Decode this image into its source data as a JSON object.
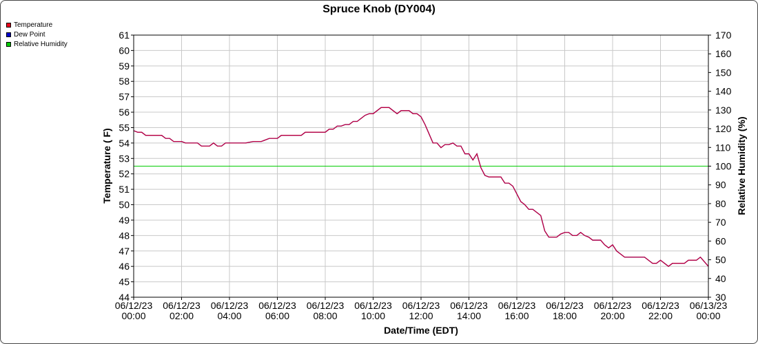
{
  "chart_data": {
    "type": "line",
    "title": "Spruce Knob (DY004)",
    "xlabel": "Date/Time (EDT)",
    "ylabel": "Temperature ( F)",
    "y2label": "Relative Humidity (%)",
    "ylim": [
      44,
      61
    ],
    "y2lim": [
      30,
      170
    ],
    "xlim": [
      0,
      24
    ],
    "x_ticks": [
      {
        "date": "06/12/23",
        "time": "00:00"
      },
      {
        "date": "06/12/23",
        "time": "02:00"
      },
      {
        "date": "06/12/23",
        "time": "04:00"
      },
      {
        "date": "06/12/23",
        "time": "06:00"
      },
      {
        "date": "06/12/23",
        "time": "08:00"
      },
      {
        "date": "06/12/23",
        "time": "10:00"
      },
      {
        "date": "06/12/23",
        "time": "12:00"
      },
      {
        "date": "06/12/23",
        "time": "14:00"
      },
      {
        "date": "06/12/23",
        "time": "16:00"
      },
      {
        "date": "06/12/23",
        "time": "18:00"
      },
      {
        "date": "06/12/23",
        "time": "20:00"
      },
      {
        "date": "06/12/23",
        "time": "22:00"
      },
      {
        "date": "06/13/23",
        "time": "00:00"
      }
    ],
    "y_ticks": [
      44,
      45,
      46,
      47,
      48,
      49,
      50,
      51,
      52,
      53,
      54,
      55,
      56,
      57,
      58,
      59,
      60,
      61
    ],
    "y2_ticks": [
      30,
      40,
      50,
      60,
      70,
      80,
      90,
      100,
      110,
      120,
      130,
      140,
      150,
      160,
      170
    ],
    "legend": [
      "Temperature",
      "Dew Point",
      "Relative Humidity"
    ],
    "legend_position": "top-left",
    "grid": true,
    "series": [
      {
        "name": "Temperature",
        "color": "#e8001c",
        "axis": "left",
        "points": [
          [
            "06/12/23 00:00",
            54.8
          ],
          [
            "06/12/23 00:10",
            54.7
          ],
          [
            "06/12/23 00:20",
            54.7
          ],
          [
            "06/12/23 00:30",
            54.5
          ],
          [
            "06/12/23 00:40",
            54.5
          ],
          [
            "06/12/23 00:50",
            54.5
          ],
          [
            "06/12/23 01:00",
            54.5
          ],
          [
            "06/12/23 01:10",
            54.5
          ],
          [
            "06/12/23 01:20",
            54.3
          ],
          [
            "06/12/23 01:30",
            54.3
          ],
          [
            "06/12/23 01:40",
            54.1
          ],
          [
            "06/12/23 01:50",
            54.1
          ],
          [
            "06/12/23 02:00",
            54.1
          ],
          [
            "06/12/23 02:10",
            54.0
          ],
          [
            "06/12/23 02:20",
            54.0
          ],
          [
            "06/12/23 02:30",
            54.0
          ],
          [
            "06/12/23 02:40",
            54.0
          ],
          [
            "06/12/23 02:50",
            53.8
          ],
          [
            "06/12/23 03:00",
            53.8
          ],
          [
            "06/12/23 03:10",
            53.8
          ],
          [
            "06/12/23 03:20",
            54.0
          ],
          [
            "06/12/23 03:30",
            53.8
          ],
          [
            "06/12/23 03:40",
            53.8
          ],
          [
            "06/12/23 03:50",
            54.0
          ],
          [
            "06/12/23 04:00",
            54.0
          ],
          [
            "06/12/23 04:20",
            54.0
          ],
          [
            "06/12/23 04:40",
            54.0
          ],
          [
            "06/12/23 05:00",
            54.1
          ],
          [
            "06/12/23 05:20",
            54.1
          ],
          [
            "06/12/23 05:40",
            54.3
          ],
          [
            "06/12/23 06:00",
            54.3
          ],
          [
            "06/12/23 06:10",
            54.5
          ],
          [
            "06/12/23 06:40",
            54.5
          ],
          [
            "06/12/23 07:00",
            54.5
          ],
          [
            "06/12/23 07:10",
            54.7
          ],
          [
            "06/12/23 07:40",
            54.7
          ],
          [
            "06/12/23 08:00",
            54.7
          ],
          [
            "06/12/23 08:10",
            54.9
          ],
          [
            "06/12/23 08:20",
            54.9
          ],
          [
            "06/12/23 08:30",
            55.1
          ],
          [
            "06/12/23 08:40",
            55.1
          ],
          [
            "06/12/23 08:50",
            55.2
          ],
          [
            "06/12/23 09:00",
            55.2
          ],
          [
            "06/12/23 09:10",
            55.4
          ],
          [
            "06/12/23 09:20",
            55.4
          ],
          [
            "06/12/23 09:30",
            55.6
          ],
          [
            "06/12/23 09:40",
            55.8
          ],
          [
            "06/12/23 09:50",
            55.9
          ],
          [
            "06/12/23 10:00",
            55.9
          ],
          [
            "06/12/23 10:10",
            56.1
          ],
          [
            "06/12/23 10:20",
            56.3
          ],
          [
            "06/12/23 10:30",
            56.3
          ],
          [
            "06/12/23 10:40",
            56.3
          ],
          [
            "06/12/23 10:50",
            56.1
          ],
          [
            "06/12/23 11:00",
            55.9
          ],
          [
            "06/12/23 11:10",
            56.1
          ],
          [
            "06/12/23 11:20",
            56.1
          ],
          [
            "06/12/23 11:30",
            56.1
          ],
          [
            "06/12/23 11:40",
            55.9
          ],
          [
            "06/12/23 11:50",
            55.9
          ],
          [
            "06/12/23 12:00",
            55.7
          ],
          [
            "06/12/23 12:10",
            55.2
          ],
          [
            "06/12/23 12:20",
            54.6
          ],
          [
            "06/12/23 12:30",
            54.0
          ],
          [
            "06/12/23 12:40",
            54.0
          ],
          [
            "06/12/23 12:50",
            53.7
          ],
          [
            "06/12/23 13:00",
            53.9
          ],
          [
            "06/12/23 13:10",
            53.9
          ],
          [
            "06/12/23 13:20",
            54.0
          ],
          [
            "06/12/23 13:30",
            53.8
          ],
          [
            "06/12/23 13:40",
            53.8
          ],
          [
            "06/12/23 13:50",
            53.3
          ],
          [
            "06/12/23 14:00",
            53.3
          ],
          [
            "06/12/23 14:10",
            52.9
          ],
          [
            "06/12/23 14:20",
            53.3
          ],
          [
            "06/12/23 14:30",
            52.4
          ],
          [
            "06/12/23 14:40",
            51.9
          ],
          [
            "06/12/23 14:50",
            51.8
          ],
          [
            "06/12/23 15:00",
            51.8
          ],
          [
            "06/12/23 15:10",
            51.8
          ],
          [
            "06/12/23 15:20",
            51.8
          ],
          [
            "06/12/23 15:30",
            51.4
          ],
          [
            "06/12/23 15:40",
            51.4
          ],
          [
            "06/12/23 15:50",
            51.2
          ],
          [
            "06/12/23 16:00",
            50.7
          ],
          [
            "06/12/23 16:10",
            50.2
          ],
          [
            "06/12/23 16:20",
            50.0
          ],
          [
            "06/12/23 16:30",
            49.7
          ],
          [
            "06/12/23 16:40",
            49.7
          ],
          [
            "06/12/23 16:50",
            49.5
          ],
          [
            "06/12/23 17:00",
            49.3
          ],
          [
            "06/12/23 17:10",
            48.3
          ],
          [
            "06/12/23 17:20",
            47.9
          ],
          [
            "06/12/23 17:30",
            47.9
          ],
          [
            "06/12/23 17:40",
            47.9
          ],
          [
            "06/12/23 17:50",
            48.1
          ],
          [
            "06/12/23 18:00",
            48.2
          ],
          [
            "06/12/23 18:10",
            48.2
          ],
          [
            "06/12/23 18:20",
            48.0
          ],
          [
            "06/12/23 18:30",
            48.0
          ],
          [
            "06/12/23 18:40",
            48.2
          ],
          [
            "06/12/23 18:50",
            48.0
          ],
          [
            "06/12/23 19:00",
            47.9
          ],
          [
            "06/12/23 19:10",
            47.7
          ],
          [
            "06/12/23 19:20",
            47.7
          ],
          [
            "06/12/23 19:30",
            47.7
          ],
          [
            "06/12/23 19:40",
            47.4
          ],
          [
            "06/12/23 19:50",
            47.2
          ],
          [
            "06/12/23 20:00",
            47.4
          ],
          [
            "06/12/23 20:10",
            47.0
          ],
          [
            "06/12/23 20:20",
            46.8
          ],
          [
            "06/12/23 20:30",
            46.6
          ],
          [
            "06/12/23 20:40",
            46.6
          ],
          [
            "06/12/23 20:50",
            46.6
          ],
          [
            "06/12/23 21:00",
            46.6
          ],
          [
            "06/12/23 21:10",
            46.6
          ],
          [
            "06/12/23 21:20",
            46.6
          ],
          [
            "06/12/23 21:30",
            46.4
          ],
          [
            "06/12/23 21:40",
            46.2
          ],
          [
            "06/12/23 21:50",
            46.2
          ],
          [
            "06/12/23 22:00",
            46.4
          ],
          [
            "06/12/23 22:10",
            46.2
          ],
          [
            "06/12/23 22:20",
            46.0
          ],
          [
            "06/12/23 22:30",
            46.2
          ],
          [
            "06/12/23 22:40",
            46.2
          ],
          [
            "06/12/23 22:50",
            46.2
          ],
          [
            "06/12/23 23:00",
            46.2
          ],
          [
            "06/12/23 23:10",
            46.4
          ],
          [
            "06/12/23 23:20",
            46.4
          ],
          [
            "06/12/23 23:30",
            46.4
          ],
          [
            "06/12/23 23:40",
            46.6
          ],
          [
            "06/12/23 23:50",
            46.3
          ],
          [
            "06/13/23 00:00",
            46.0
          ]
        ]
      },
      {
        "name": "Dew Point",
        "color": "#0000cc",
        "axis": "left",
        "points": "same as Temperature"
      },
      {
        "name": "Relative Humidity",
        "color": "#00cc00",
        "axis": "right",
        "points": [
          [
            "06/12/23 00:00",
            100
          ],
          [
            "06/13/23 00:00",
            100
          ]
        ]
      }
    ]
  }
}
